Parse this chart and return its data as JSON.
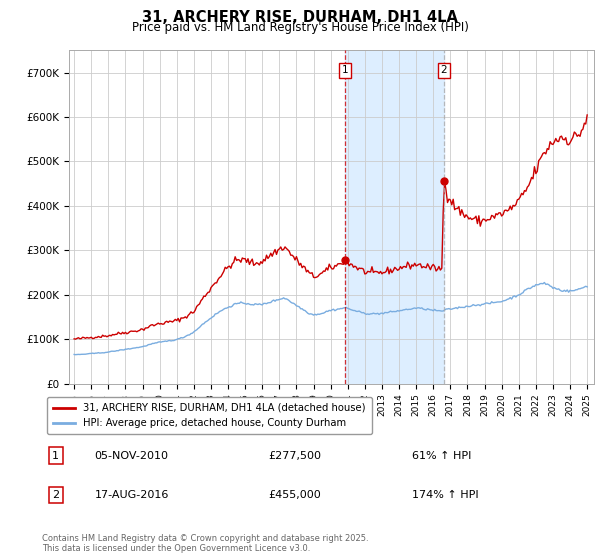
{
  "title": "31, ARCHERY RISE, DURHAM, DH1 4LA",
  "subtitle": "Price paid vs. HM Land Registry's House Price Index (HPI)",
  "ylim": [
    0,
    750000
  ],
  "yticks": [
    0,
    100000,
    200000,
    300000,
    400000,
    500000,
    600000,
    700000
  ],
  "ytick_labels": [
    "£0",
    "£100K",
    "£200K",
    "£300K",
    "£400K",
    "£500K",
    "£600K",
    "£700K"
  ],
  "xlim": [
    1994.7,
    2025.4
  ],
  "background_color": "#ffffff",
  "plot_bg_color": "#ffffff",
  "grid_color": "#cccccc",
  "line1_color": "#cc0000",
  "line2_color": "#7aade0",
  "shade_color": "#ddeeff",
  "vline1_color": "#cc0000",
  "vline2_color": "#aaaaaa",
  "marker1_x": 2010.85,
  "marker1_y": 277500,
  "marker2_x": 2016.63,
  "marker2_y": 455000,
  "legend_label1": "31, ARCHERY RISE, DURHAM, DH1 4LA (detached house)",
  "legend_label2": "HPI: Average price, detached house, County Durham",
  "footer": "Contains HM Land Registry data © Crown copyright and database right 2025.\nThis data is licensed under the Open Government Licence v3.0."
}
